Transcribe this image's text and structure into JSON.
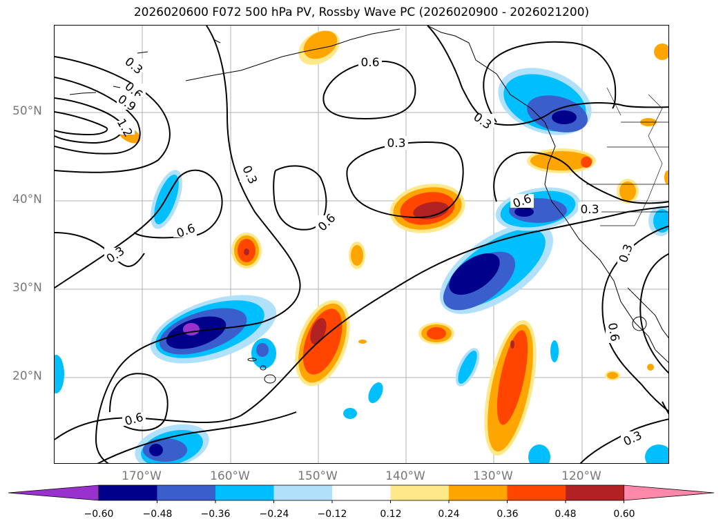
{
  "title": "2026020600 F072 500 hPa PV, Rossby Wave PC (2026020900 - 2026021200)",
  "map": {
    "lat_labels": [
      "50°N",
      "40°N",
      "30°N",
      "20°N"
    ],
    "lon_labels": [
      "170°W",
      "160°W",
      "150°W",
      "140°W",
      "130°W",
      "120°W"
    ],
    "contour_labels": [
      "0.3",
      "0.6",
      "0.9",
      "1.2",
      "0.6",
      "0.3",
      "0.3",
      "0.6",
      "0.3",
      "0.6",
      "0.3",
      "0.6",
      "0.3",
      "0.3",
      "0.6",
      "0.6",
      "0.3"
    ]
  },
  "colorbar": {
    "tick_labels": [
      "−0.60",
      "−0.48",
      "−0.36",
      "−0.24",
      "−0.12",
      "0.12",
      "0.24",
      "0.36",
      "0.48",
      "0.60"
    ],
    "colors": [
      "#9932cc",
      "#00008b",
      "#3a5fcd",
      "#00bfff",
      "#b0e0fa",
      "#ffffff",
      "#ffe88a",
      "#ffa500",
      "#ff4500",
      "#b22222",
      "#ff88aa"
    ]
  }
}
